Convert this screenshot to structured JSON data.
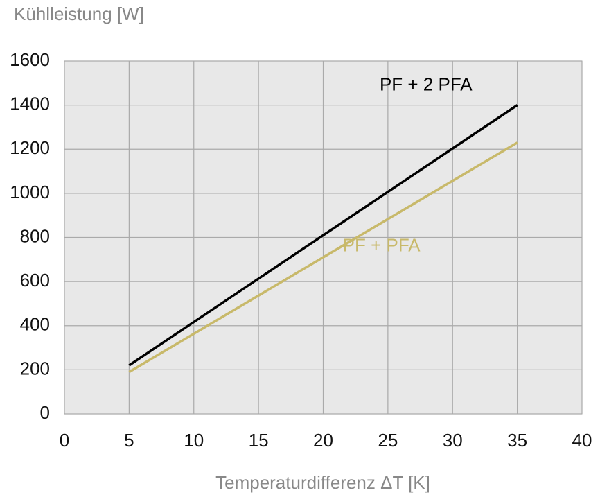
{
  "chart_data": {
    "type": "line",
    "y_label": "Kühlleistung [W]",
    "x_label": "Temperaturdifferenz ΔT [K]",
    "x": [
      5,
      35
    ],
    "series": [
      {
        "name": "PF + 2 PFA",
        "color": "#000000",
        "values": [
          220,
          1400
        ]
      },
      {
        "name": "PF + PFA",
        "color": "#c8b96a",
        "values": [
          190,
          1230
        ]
      }
    ],
    "xlim": [
      0,
      40
    ],
    "xticks": [
      0,
      5,
      10,
      15,
      20,
      25,
      30,
      35,
      40
    ],
    "ylim": [
      0,
      1600
    ],
    "yticks": [
      0,
      200,
      400,
      600,
      800,
      1000,
      1200,
      1400,
      1600
    ],
    "grid": true
  }
}
